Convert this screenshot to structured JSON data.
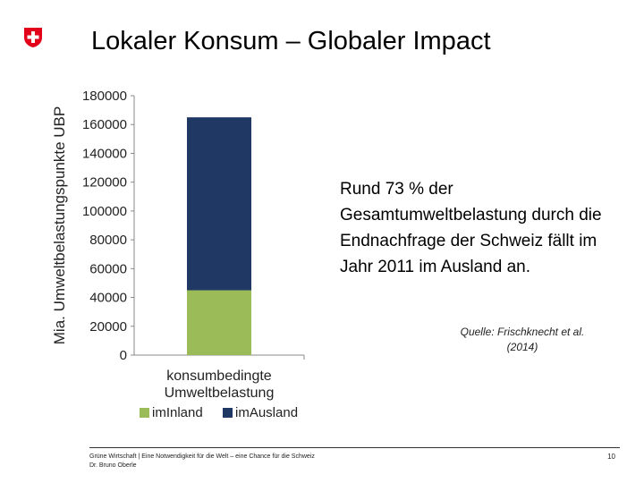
{
  "slide": {
    "title": "Lokaler Konsum – Globaler Impact",
    "body": "Rund 73 % der Gesamtumweltbelastung durch die Endnachfrage der Schweiz fällt im Jahr 2011 im Ausland an.",
    "source": "Quelle: Frischknecht et al. (2014)",
    "footer_line1": "Grüne Wirtschaft | Eine Notwendigkeit für die Welt – eine Chance für die Schweiz",
    "footer_line2": "Dr. Bruno Oberle",
    "page_number": "10"
  },
  "colors": {
    "inland": "#9bbb59",
    "ausland": "#1f3864",
    "swiss_red": "#e3001b"
  },
  "chart_data": {
    "type": "bar",
    "stacked": true,
    "categories": [
      "konsumbedingte Umweltbelastung"
    ],
    "series": [
      {
        "name": "imInland",
        "values": [
          45000
        ]
      },
      {
        "name": "imAusland",
        "values": [
          120000
        ]
      }
    ],
    "ylabel": "Mia. Umweltbelastungspunkte UBP",
    "xlabel": "",
    "ylim": [
      0,
      180000
    ],
    "yticks": [
      0,
      20000,
      40000,
      60000,
      80000,
      100000,
      120000,
      140000,
      160000,
      180000
    ],
    "grid": false,
    "legend": "bottom"
  }
}
